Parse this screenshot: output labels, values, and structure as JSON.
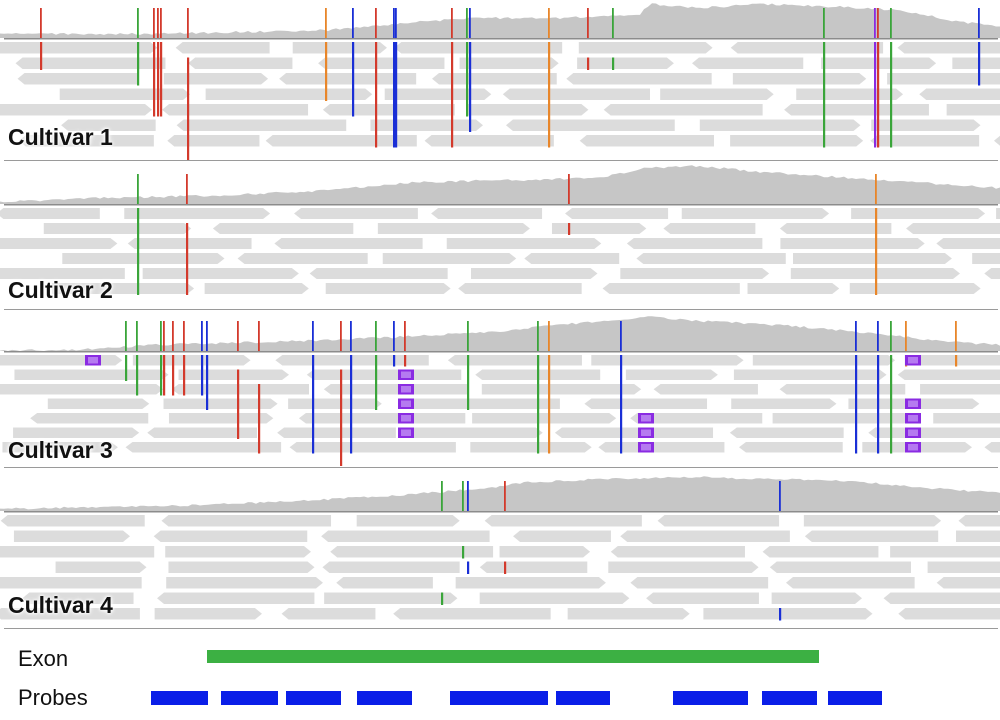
{
  "panels": [
    {
      "name": "cultivar-1",
      "label": "Cultivar 1"
    },
    {
      "name": "cultivar-2",
      "label": "Cultivar 2"
    },
    {
      "name": "cultivar-3",
      "label": "Cultivar 3"
    },
    {
      "name": "cultivar-4",
      "label": "Cultivar 4"
    }
  ],
  "tracks": {
    "exon_label": "Exon",
    "probes_label": "Probes"
  },
  "colors": {
    "coverage": "#c6c6c6",
    "read": "#dcdcdc",
    "read_light": "#e8e8e8",
    "exon": "#3cb043",
    "probe": "#0a1ee8",
    "mismatch_red": "#d33a2c",
    "mismatch_green": "#3aa53a",
    "mismatch_blue": "#1a2fd6",
    "mismatch_orange": "#e8862a",
    "insertion_purple": "#8a2be2"
  }
}
